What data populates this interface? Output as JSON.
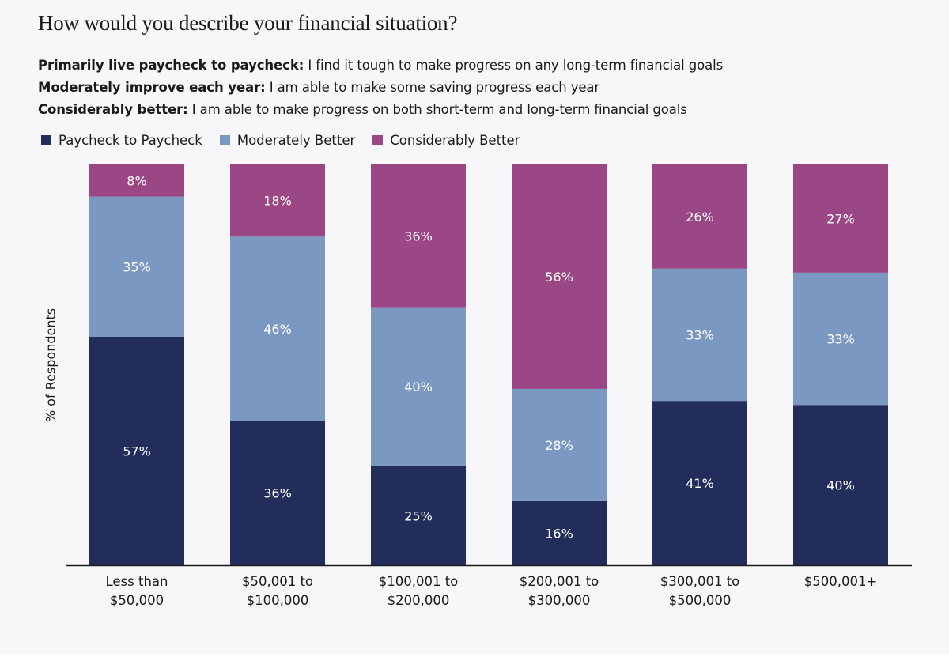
{
  "title": "How would you describe your financial situation?",
  "definitions": [
    {
      "term": "Primarily live paycheck to paycheck:",
      "text": " I find it tough to make progress on any long-term financial goals"
    },
    {
      "term": "Moderately improve each year:",
      "text": " I am able to make some saving progress each year"
    },
    {
      "term": "Considerably better:",
      "text": " I am able to make progress on both short-term and long-term financial goals"
    }
  ],
  "chart_data": {
    "type": "bar",
    "stacked": true,
    "ylabel": "% of Respondents",
    "ylim": [
      0,
      100
    ],
    "grid": false,
    "legend_position": "top-left",
    "categories": [
      [
        "Less than",
        "$50,000"
      ],
      [
        "$50,001 to",
        "$100,000"
      ],
      [
        "$100,001 to",
        "$200,000"
      ],
      [
        "$200,001 to",
        "$300,000"
      ],
      [
        "$300,001 to",
        "$500,000"
      ],
      [
        "$500,001+"
      ]
    ],
    "series": [
      {
        "name": "Paycheck to Paycheck",
        "color": "#232d5c",
        "values": [
          57,
          36,
          25,
          16,
          41,
          40
        ]
      },
      {
        "name": "Moderately Better",
        "color": "#7b98c3",
        "values": [
          35,
          46,
          40,
          28,
          33,
          33
        ]
      },
      {
        "name": "Considerably Better",
        "color": "#9b4786",
        "values": [
          8,
          18,
          36,
          56,
          26,
          27
        ]
      }
    ]
  }
}
